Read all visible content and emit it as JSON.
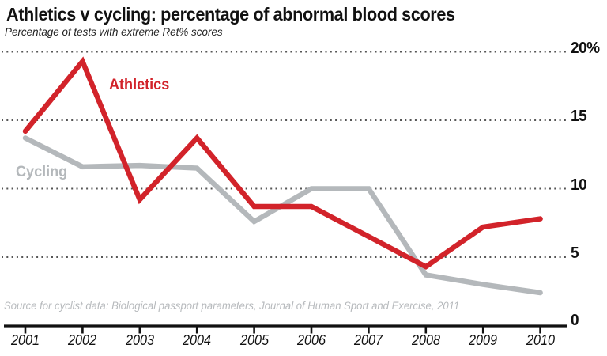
{
  "header": {
    "title": "Athletics v cycling: percentage of abnormal blood scores",
    "subtitle": "Percentage of tests with extreme Ret% scores"
  },
  "source_note": "Source for cyclist data: Biological passport parameters, Journal of Human Sport and Exercise, 2011",
  "colors": {
    "athletics": "#d2232a",
    "cycling": "#b4b8bb",
    "axis": "#111111",
    "gridline": "#555555",
    "tick_label": "#111111",
    "source_text": "#b7babd"
  },
  "chart_data": {
    "type": "line",
    "title": "Athletics v cycling: percentage of abnormal blood scores",
    "subtitle": "Percentage of tests with extreme Ret% scores",
    "x": [
      2001,
      2002,
      2003,
      2004,
      2005,
      2006,
      2007,
      2008,
      2009,
      2010
    ],
    "xtick_labels": [
      "2001",
      "2002",
      "2003",
      "2004",
      "2005",
      "2006",
      "2007",
      "2008",
      "2009",
      "2010"
    ],
    "series": [
      {
        "name": "Athletics",
        "color": "#d2232a",
        "values": [
          14.2,
          19.3,
          9.2,
          13.7,
          8.7,
          8.7,
          6.5,
          4.3,
          7.2,
          7.8
        ]
      },
      {
        "name": "Cycling",
        "color": "#b4b8bb",
        "values": [
          13.7,
          11.6,
          11.7,
          11.5,
          7.6,
          10.0,
          10.0,
          3.7,
          3.0,
          2.4
        ]
      }
    ],
    "ylim": [
      0,
      20
    ],
    "yticks": [
      0,
      5,
      10,
      15,
      20
    ],
    "ytick_labels": [
      "0",
      "5",
      "10",
      "15",
      "20%"
    ],
    "grid": "horizontal-dotted",
    "legend_position": "inline-labels"
  }
}
